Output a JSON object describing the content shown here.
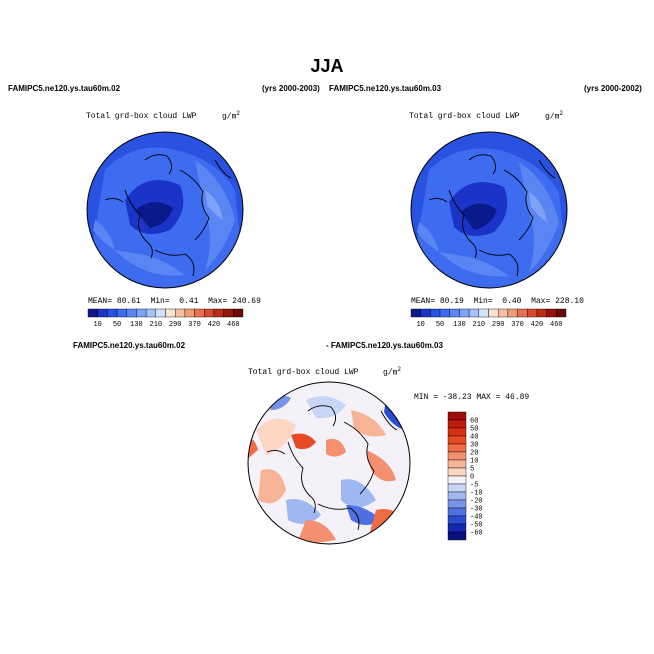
{
  "title": "JJA",
  "panels": [
    {
      "case": "FAMIPC5.ne120.ys.tau60m.02",
      "years": "(yrs 2000-2003)",
      "varname": "Total grd-box cloud LWP",
      "units": "g/m",
      "units_exp": "2",
      "stats": {
        "mean_label": "MEAN=",
        "mean": "80.61",
        "min_label": "Min=",
        "min": "0.41",
        "max_label": "Max=",
        "max": "240.69"
      }
    },
    {
      "case": "FAMIPC5.ne120.ys.tau60m.03",
      "years": "(yrs 2000-2002)",
      "varname": "Total grd-box cloud LWP",
      "units": "g/m",
      "units_exp": "2",
      "stats": {
        "mean_label": "MEAN=",
        "mean": "80.19",
        "min_label": "Min=",
        "min": "0.40",
        "max_label": "Max=",
        "max": "228.10"
      }
    }
  ],
  "diff": {
    "case_a": "FAMIPC5.ne120.ys.tau60m.02",
    "case_b": "- FAMIPC5.ne120.ys.tau60m.03",
    "varname": "Total grd-box cloud LWP",
    "units": "g/m",
    "units_exp": "2",
    "stats_text": "MIN = -38.23 MAX =  46.89"
  },
  "chart_data": [
    {
      "type": "heatmap",
      "projection": "polar-stereographic",
      "title": "Total grd-box cloud LWP",
      "units": "g/m2",
      "colorbar": {
        "orientation": "horizontal",
        "levels": [
          10,
          50,
          130,
          210,
          290,
          370,
          420,
          460
        ],
        "colors": [
          "#0a1a8a",
          "#1a34c8",
          "#2a52e0",
          "#3e6cf0",
          "#5a86f4",
          "#7ea2f8",
          "#a6c2fa",
          "#d4e2fc",
          "#fbe2d2",
          "#f8c0a2",
          "#f29a74",
          "#e87050",
          "#d84a30",
          "#bc2a18",
          "#96140a",
          "#6c0a04"
        ],
        "label_index": [
          1,
          3,
          5,
          7,
          9,
          11,
          13,
          15
        ]
      },
      "stats": {
        "mean": 80.61,
        "min": 0.41,
        "max": 240.69
      }
    },
    {
      "type": "heatmap",
      "projection": "polar-stereographic",
      "title": "Total grd-box cloud LWP",
      "units": "g/m2",
      "colorbar": {
        "orientation": "horizontal",
        "levels": [
          10,
          50,
          130,
          210,
          290,
          370,
          420,
          460
        ],
        "colors": [
          "#0a1a8a",
          "#1a34c8",
          "#2a52e0",
          "#3e6cf0",
          "#5a86f4",
          "#7ea2f8",
          "#a6c2fa",
          "#d4e2fc",
          "#fbe2d2",
          "#f8c0a2",
          "#f29a74",
          "#e87050",
          "#d84a30",
          "#bc2a18",
          "#96140a",
          "#6c0a04"
        ],
        "label_index": [
          1,
          3,
          5,
          7,
          9,
          11,
          13,
          15
        ]
      },
      "stats": {
        "mean": 80.19,
        "min": 0.4,
        "max": 228.1
      }
    },
    {
      "type": "heatmap",
      "projection": "polar-stereographic",
      "title": "Total grd-box cloud LWP",
      "units": "g/m2",
      "colorbar": {
        "orientation": "vertical",
        "levels": [
          60,
          50,
          40,
          30,
          20,
          10,
          5,
          0,
          -5,
          -10,
          -20,
          -30,
          -40,
          -50,
          -60
        ],
        "colors": [
          "#9c0e0a",
          "#be1a0e",
          "#d83014",
          "#e84a24",
          "#f06c46",
          "#f49070",
          "#f8b496",
          "#fcd6c2",
          "#f4f2f8",
          "#c8d6f6",
          "#a0b8f2",
          "#7694ea",
          "#4e70e0",
          "#2a4cd2",
          "#1428b0",
          "#08107e"
        ]
      },
      "stats": {
        "min": -38.23,
        "max": 46.89
      }
    }
  ]
}
